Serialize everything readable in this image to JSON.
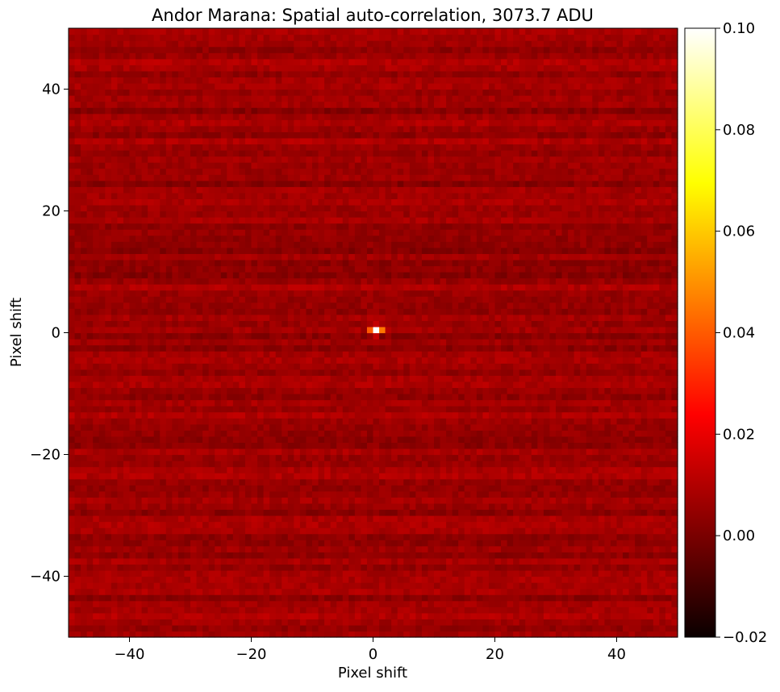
{
  "chart_data": {
    "type": "heatmap",
    "title": "Andor Marana: Spatial auto-correlation, 3073.7 ADU",
    "xlabel": "Pixel shift",
    "ylabel": "Pixel shift",
    "xlim": [
      -50,
      50
    ],
    "ylim": [
      -50,
      50
    ],
    "x_ticks": [
      -40,
      -20,
      0,
      20,
      40
    ],
    "y_ticks": [
      -40,
      -20,
      0,
      20,
      40
    ],
    "x_tick_labels": [
      "−40",
      "−20",
      "0",
      "20",
      "40"
    ],
    "y_tick_labels": [
      "−40",
      "−20",
      "0",
      "20",
      "40"
    ],
    "colormap": "hot",
    "colorbar": {
      "vmin": -0.02,
      "vmax": 0.1,
      "ticks": [
        -0.02,
        0.0,
        0.02,
        0.04,
        0.06,
        0.08,
        0.1
      ],
      "tick_labels": [
        "−0.02",
        "0.00",
        "0.02",
        "0.04",
        "0.06",
        "0.08",
        "0.10"
      ]
    },
    "grid": false,
    "cell_size": 1,
    "background_level": 0.005,
    "row_stripe_amplitude": 0.004,
    "pixel_noise_amplitude": 0.003,
    "peaks": [
      {
        "x": 0,
        "y": 0,
        "value": 0.1
      },
      {
        "x": 1,
        "y": 0,
        "value": 0.045
      },
      {
        "x": -1,
        "y": 0,
        "value": 0.04
      },
      {
        "x": 0,
        "y": 1,
        "value": 0.012
      },
      {
        "x": 0,
        "y": -1,
        "value": 0.012
      }
    ]
  }
}
